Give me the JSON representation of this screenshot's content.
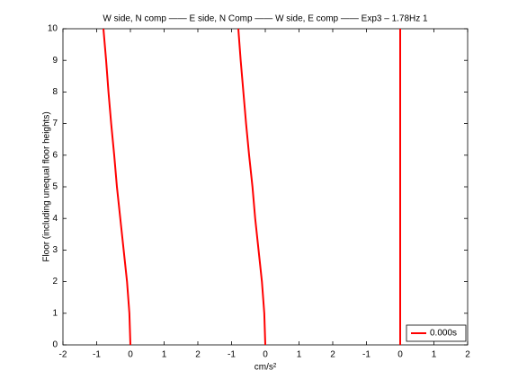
{
  "chart_data": {
    "type": "line",
    "title": "W side, N comp —— E side, N Comp —— W side, E comp —— Exp3 – 1.78Hz 1",
    "x_label": "cm/s²",
    "y_label": "Floor (including unequal floor heights)",
    "xlim": [
      -2,
      10
    ],
    "xticks": [
      -2,
      -1,
      0,
      1,
      2,
      {
        "value": 3,
        "label": "-1"
      },
      {
        "value": 4,
        "label": "0"
      },
      {
        "value": 5,
        "label": "1"
      },
      {
        "value": 6,
        "label": "2"
      },
      {
        "value": 7,
        "label": "-1"
      },
      {
        "value": 8,
        "label": "0"
      },
      {
        "value": 9,
        "label": "1"
      },
      {
        "value": 10,
        "label": "2"
      }
    ],
    "ylim": [
      0,
      10
    ],
    "yticks": [
      0,
      1,
      2,
      3,
      4,
      5,
      6,
      7,
      8,
      9,
      10
    ],
    "y": [
      0,
      1,
      2,
      3,
      4,
      5,
      6,
      7,
      8,
      9,
      10
    ],
    "series": [
      {
        "name": "0.000s",
        "color": "#ff0000",
        "x": [
          0,
          -0.03,
          -0.1,
          -0.2,
          -0.3,
          -0.4,
          -0.48,
          -0.57,
          -0.65,
          -0.72,
          -0.8
        ]
      },
      {
        "color": "#ff0000",
        "x": [
          4,
          3.97,
          3.9,
          3.8,
          3.7,
          3.62,
          3.52,
          3.43,
          3.35,
          3.27,
          3.2
        ]
      },
      {
        "color": "#ff0000",
        "x": [
          8,
          8,
          8,
          8,
          8,
          8,
          8,
          8,
          8,
          8,
          8
        ]
      }
    ],
    "legend": "lower right"
  }
}
